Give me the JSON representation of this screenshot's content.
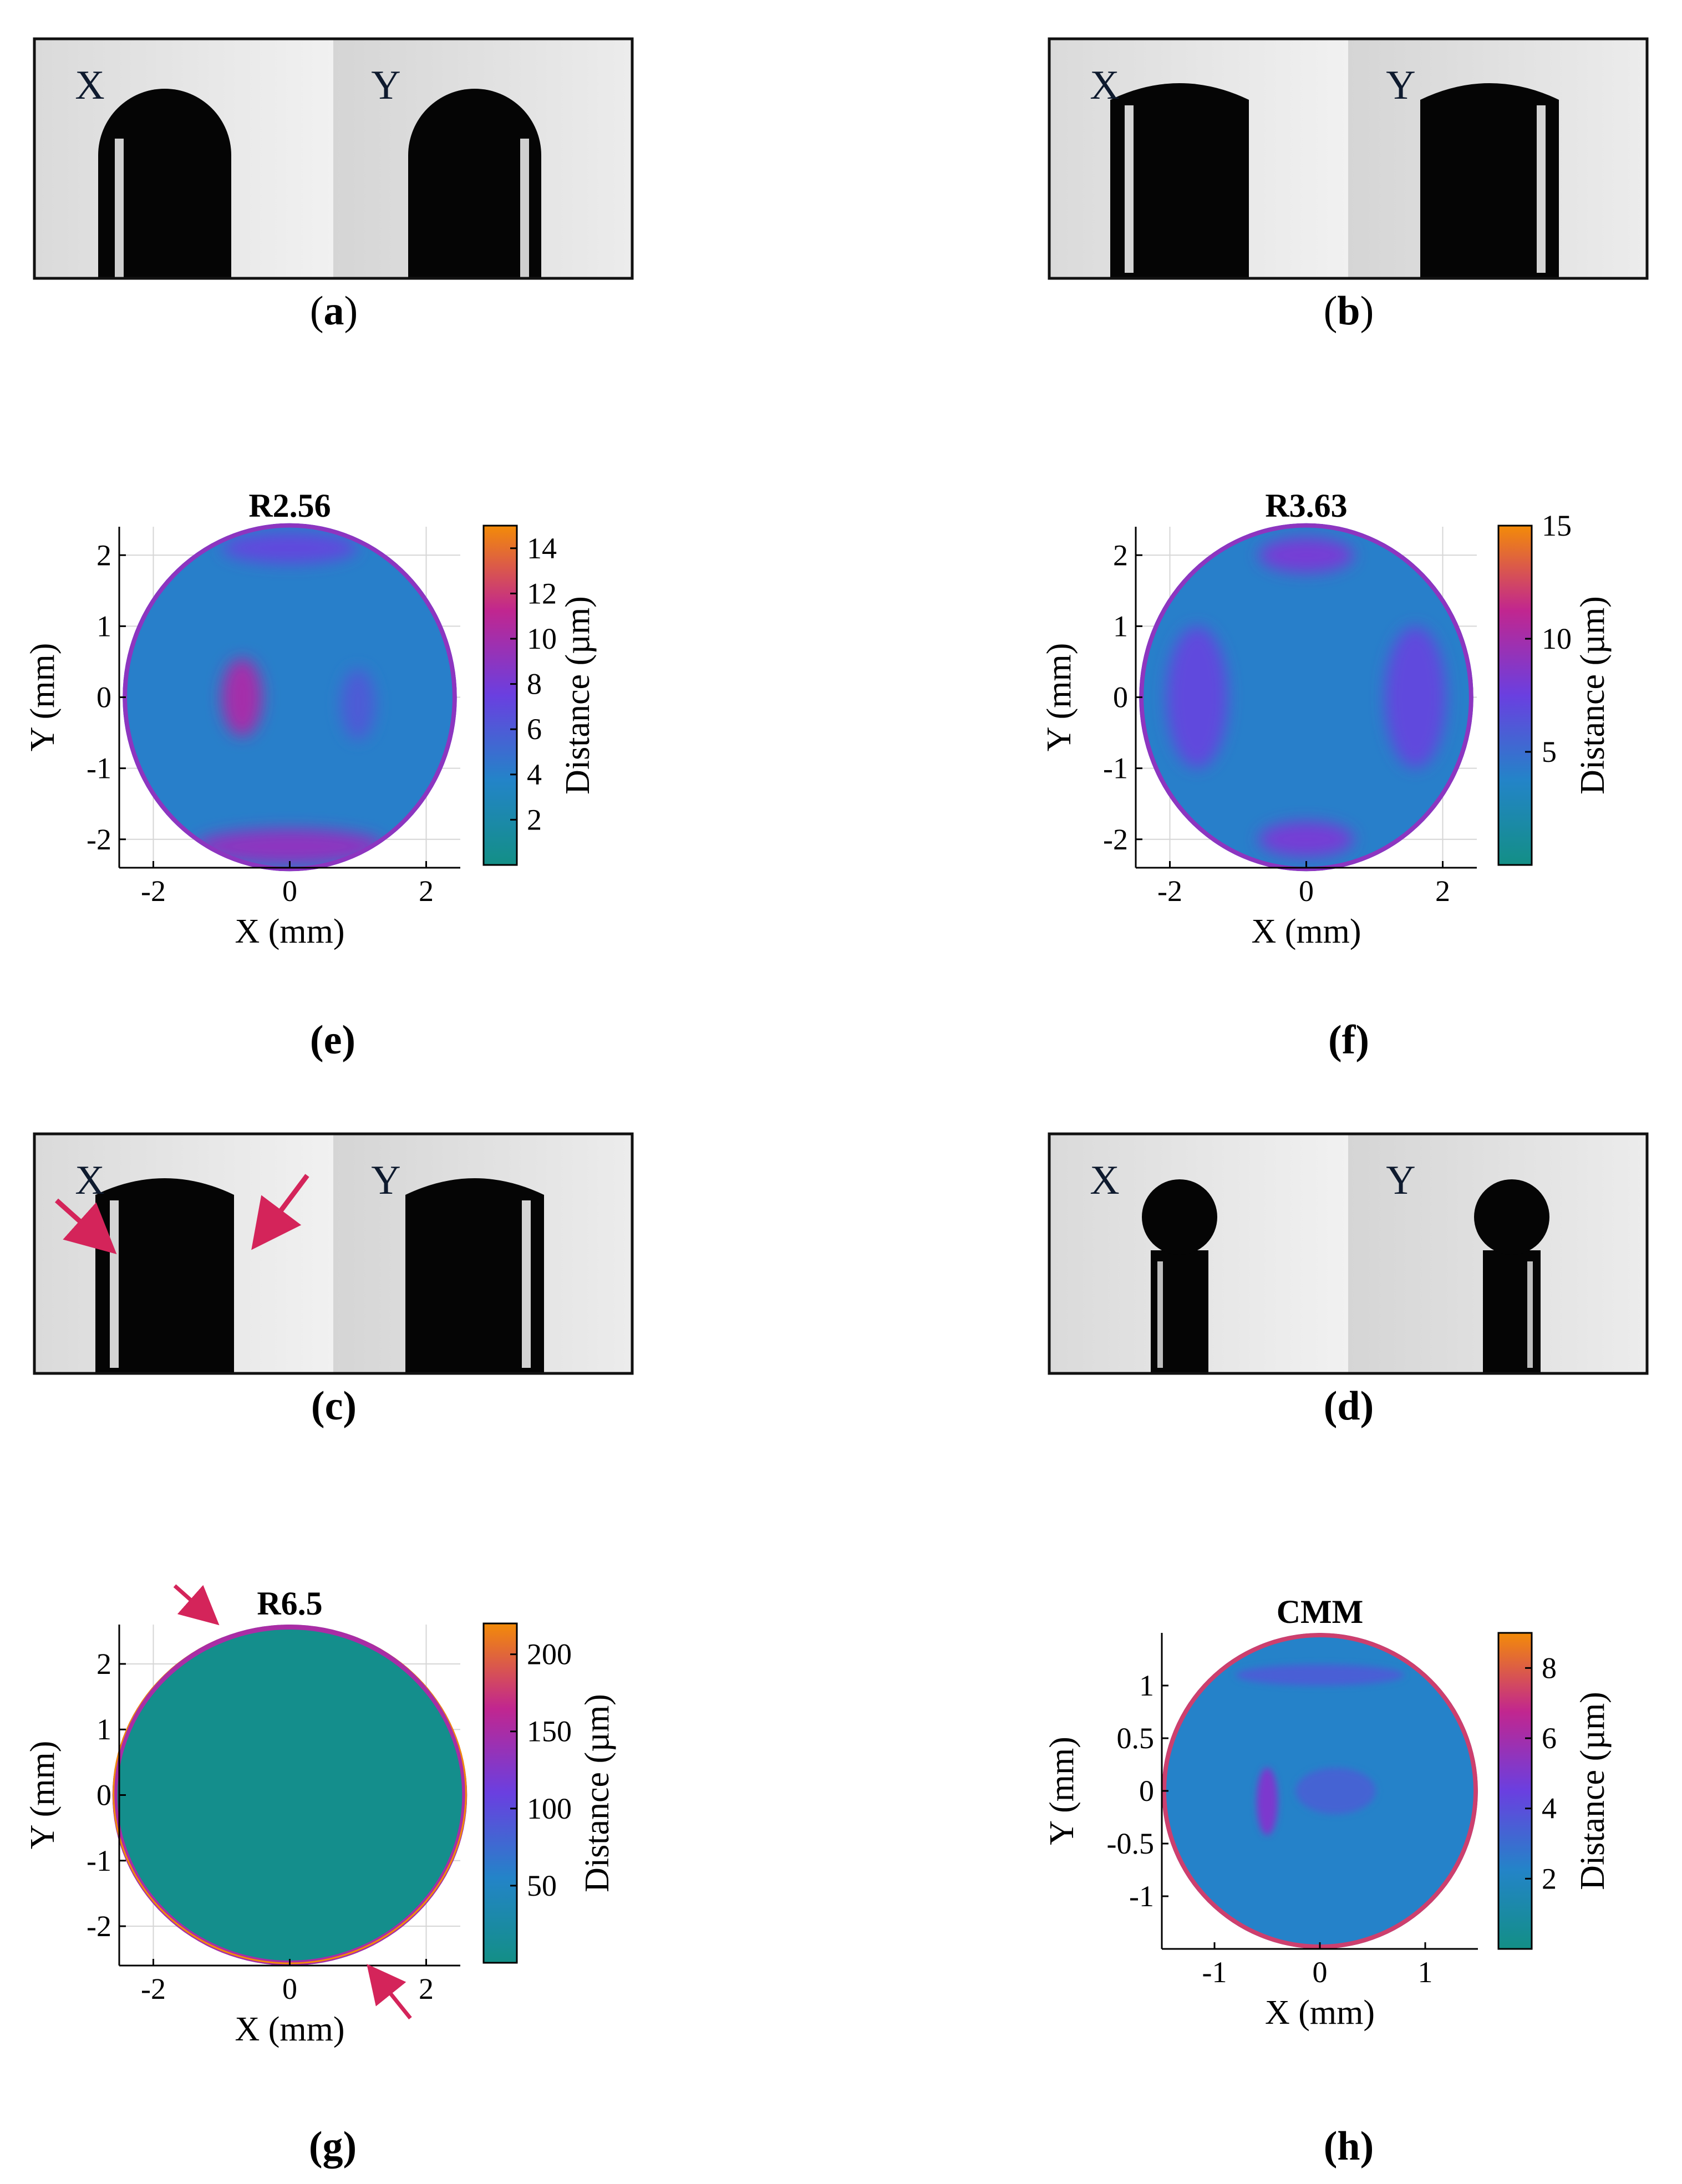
{
  "photo_panels": [
    {
      "id": "a",
      "caption_open": "(",
      "caption_letter": "a",
      "caption_close": ")",
      "left_label": "X",
      "right_label": "Y",
      "shape": "arch",
      "arrows": false
    },
    {
      "id": "b",
      "caption_open": "(",
      "caption_letter": "b",
      "caption_close": ")",
      "left_label": "X",
      "right_label": "Y",
      "shape": "flat-arch",
      "arrows": false
    },
    {
      "id": "c",
      "caption_open": "(",
      "caption_letter": "c",
      "caption_close": ")",
      "left_label": "X",
      "right_label": "Y",
      "shape": "flat-arch",
      "arrows": true
    },
    {
      "id": "d",
      "caption_open": "(",
      "caption_letter": "d",
      "caption_close": ")",
      "left_label": "X",
      "right_label": "Y",
      "shape": "ball-stem",
      "arrows": false
    }
  ],
  "chart_data": [
    {
      "id": "e",
      "type": "heatmap",
      "title": "R2.56",
      "caption": "(e)",
      "xlabel": "X (mm)",
      "ylabel": "Y (mm)",
      "colorbar_label": "Distance (µm)",
      "xlim": [
        -2.5,
        2.5
      ],
      "ylim": [
        -2.4,
        2.4
      ],
      "radius": 2.45,
      "xticks": [
        -2,
        0,
        2
      ],
      "yticks": [
        2,
        1,
        0,
        -1,
        -2
      ],
      "cbar_range": [
        0,
        15
      ],
      "cbar_ticks": [
        14,
        12,
        10,
        8,
        6,
        4,
        2
      ],
      "base_value": 4,
      "features": [
        {
          "x": -0.7,
          "y": 0.0,
          "rx": 0.3,
          "ry": 0.55,
          "v": 10,
          "lbl": "crescent-left"
        },
        {
          "x": 1.0,
          "y": -0.1,
          "rx": 0.25,
          "ry": 0.5,
          "v": 6,
          "lbl": "spot-right"
        },
        {
          "x": 0.0,
          "y": -2.1,
          "rx": 1.4,
          "ry": 0.25,
          "v": 9,
          "lbl": "band-bottom"
        },
        {
          "x": 0.0,
          "y": 2.1,
          "rx": 1.0,
          "ry": 0.22,
          "v": 7,
          "lbl": "band-top"
        }
      ],
      "grid": true
    },
    {
      "id": "f",
      "type": "heatmap",
      "title": "R3.63",
      "caption": "(f)",
      "xlabel": "X (mm)",
      "ylabel": "Y (mm)",
      "colorbar_label": "Distance (µm)",
      "xlim": [
        -2.5,
        2.5
      ],
      "ylim": [
        -2.4,
        2.4
      ],
      "radius": 2.45,
      "xticks": [
        -2,
        0,
        2
      ],
      "yticks": [
        2,
        1,
        0,
        -1,
        -2
      ],
      "cbar_range": [
        0,
        15
      ],
      "cbar_ticks": [
        15,
        10,
        5
      ],
      "base_value": 4,
      "features": [
        {
          "x": -1.6,
          "y": 0.0,
          "rx": 0.45,
          "ry": 1.0,
          "v": 7,
          "lbl": "lobe-left"
        },
        {
          "x": 1.6,
          "y": 0.0,
          "rx": 0.45,
          "ry": 1.0,
          "v": 7,
          "lbl": "lobe-right"
        },
        {
          "x": 0.0,
          "y": 2.0,
          "rx": 0.7,
          "ry": 0.25,
          "v": 8,
          "lbl": "lobe-top"
        },
        {
          "x": 0.0,
          "y": -2.0,
          "rx": 0.7,
          "ry": 0.25,
          "v": 8,
          "lbl": "lobe-bottom"
        }
      ],
      "grid": true
    },
    {
      "id": "g",
      "type": "heatmap",
      "title": "R6.5",
      "caption": "(g)",
      "xlabel": "X (mm)",
      "ylabel": "Y (mm)",
      "colorbar_label": "Distance (µm)",
      "xlim": [
        -2.5,
        2.5
      ],
      "ylim": [
        -2.6,
        2.6
      ],
      "radius": 2.6,
      "xticks": [
        -2,
        0,
        2
      ],
      "yticks": [
        2,
        1,
        0,
        -1,
        -2
      ],
      "cbar_range": [
        0,
        220
      ],
      "cbar_ticks": [
        200,
        150,
        100,
        50
      ],
      "base_value": 5,
      "features": [],
      "rim_value": 150,
      "grid": true
    },
    {
      "id": "h",
      "type": "heatmap",
      "title": "CMM",
      "caption": "(h)",
      "xlabel": "X (mm)",
      "ylabel": "Y (mm)",
      "colorbar_label": "Distance (µm)",
      "xlim": [
        -1.5,
        1.5
      ],
      "ylim": [
        -1.5,
        1.5
      ],
      "radius": 1.5,
      "xticks": [
        -1,
        0,
        1
      ],
      "yticks": [
        1,
        0.5,
        0,
        -0.5,
        -1
      ],
      "cbar_range": [
        0,
        9
      ],
      "cbar_ticks": [
        8,
        6,
        4,
        2
      ],
      "base_value": 2.3,
      "features": [
        {
          "x": -0.5,
          "y": -0.1,
          "rx": 0.1,
          "ry": 0.32,
          "v": 5,
          "lbl": "crescent-left"
        },
        {
          "x": 0.15,
          "y": 0.0,
          "rx": 0.38,
          "ry": 0.22,
          "v": 3.3,
          "lbl": "spot-center"
        },
        {
          "x": 0.0,
          "y": 1.1,
          "rx": 0.8,
          "ry": 0.1,
          "v": 3.5,
          "lbl": "arc-top"
        }
      ],
      "grid": false
    }
  ],
  "colors": {
    "map_low": "#138f86",
    "map_mid1": "#2384c8",
    "map_mid2": "#6a3fe0",
    "map_mid3": "#c1268f",
    "map_high": "#f38b08",
    "arrow": "#d4245a"
  }
}
